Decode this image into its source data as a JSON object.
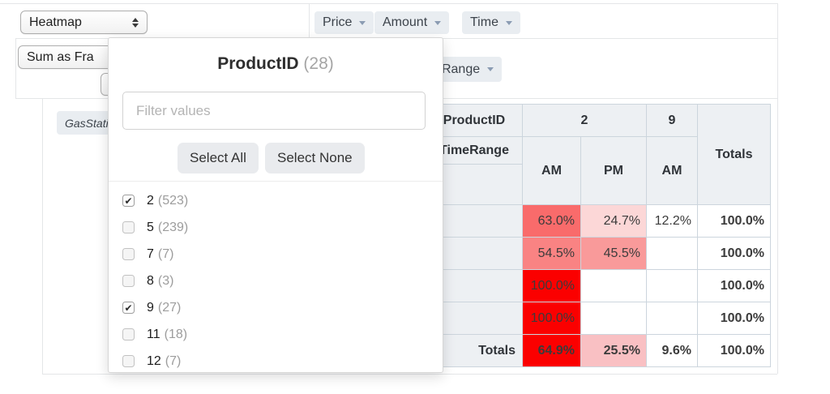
{
  "renderer_select": {
    "value": "Heatmap"
  },
  "aggregator_select": {
    "value": "Sum as Fra"
  },
  "unused_attrs": [
    {
      "label": "Price"
    },
    {
      "label": "Amount"
    },
    {
      "label": "Time"
    }
  ],
  "col_attr_button": {
    "label": "TimeRange"
  },
  "row_attr_button": {
    "label": "GasStationID"
  },
  "filter_popup": {
    "title": "ProductID",
    "count": "(28)",
    "filter_placeholder": "Filter values",
    "select_all_label": "Select All",
    "select_none_label": "Select None",
    "items": [
      {
        "value": "2",
        "count": "(523)",
        "checked": true
      },
      {
        "value": "5",
        "count": "(239)",
        "checked": false
      },
      {
        "value": "7",
        "count": "(7)",
        "checked": false
      },
      {
        "value": "8",
        "count": "(3)",
        "checked": false
      },
      {
        "value": "9",
        "count": "(27)",
        "checked": true
      },
      {
        "value": "11",
        "count": "(18)",
        "checked": false
      },
      {
        "value": "12",
        "count": "(7)",
        "checked": false
      }
    ]
  },
  "pivot_table": {
    "col_attr_labels": [
      "ProductID",
      "TimeRange"
    ],
    "col_groups": [
      {
        "label": "2",
        "sub": [
          "AM",
          "PM"
        ]
      },
      {
        "label": "9",
        "sub": [
          "AM"
        ]
      }
    ],
    "totals_label": "Totals",
    "rows": [
      {
        "label": "",
        "cells": [
          {
            "text": "63.0%",
            "bg": "#f96b6b"
          },
          {
            "text": "24.7%",
            "bg": "#fcd7d7"
          },
          {
            "text": "12.2%",
            "bg": "#ffffff"
          }
        ],
        "total": "100.0%"
      },
      {
        "label": "",
        "cells": [
          {
            "text": "54.5%",
            "bg": "#f98383"
          },
          {
            "text": "45.5%",
            "bg": "#f99a9a"
          },
          {
            "text": "",
            "bg": "#ffffff"
          }
        ],
        "total": "100.0%"
      },
      {
        "label": "",
        "cells": [
          {
            "text": "100.0%",
            "bg": "#fb0000"
          },
          {
            "text": "",
            "bg": "#ffffff"
          },
          {
            "text": "",
            "bg": "#ffffff"
          }
        ],
        "total": "100.0%"
      },
      {
        "label": "",
        "cells": [
          {
            "text": "100.0%",
            "bg": "#fb0000"
          },
          {
            "text": "",
            "bg": "#ffffff"
          },
          {
            "text": "",
            "bg": "#ffffff"
          }
        ],
        "total": "100.0%"
      }
    ],
    "totals_row": {
      "label": "Totals",
      "cells": [
        {
          "text": "64.9%",
          "bg": "#fb0000"
        },
        {
          "text": "25.5%",
          "bg": "#f9c0c3"
        },
        {
          "text": "9.6%",
          "bg": "#ffffff"
        }
      ],
      "total": "100.0%"
    },
    "colors": {
      "header_bg": "#edf0f3",
      "grid_border": "#ccd5dd",
      "heat_max": "#fb0000"
    }
  }
}
